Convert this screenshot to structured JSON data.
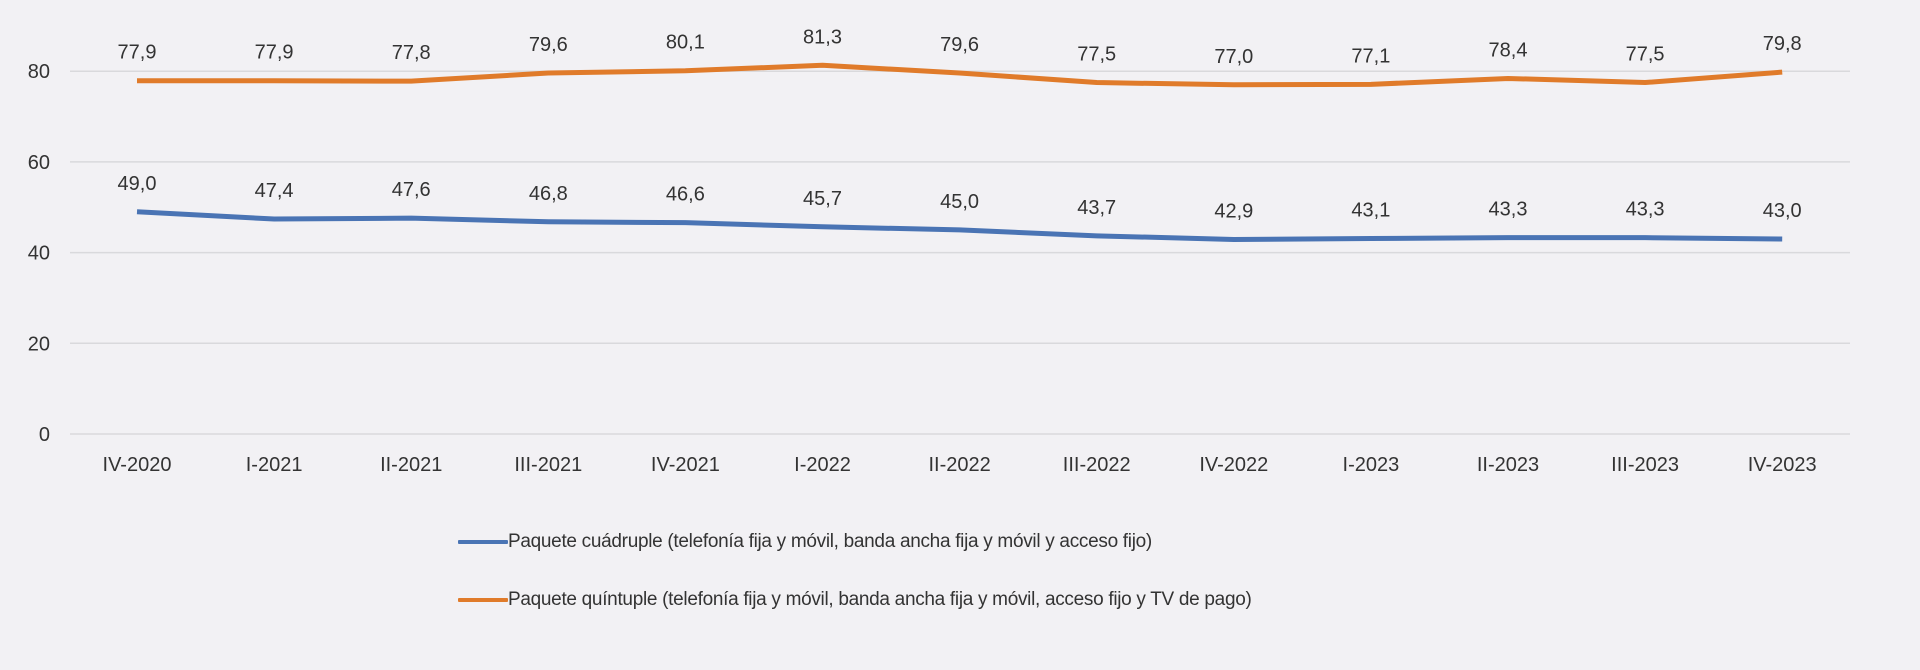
{
  "chart_data": {
    "type": "line",
    "title": "",
    "xlabel": "",
    "ylabel": "",
    "ylim": [
      0,
      80
    ],
    "yticks": [
      0,
      20,
      40,
      60,
      80
    ],
    "grid": true,
    "legend_position": "bottom",
    "categories": [
      "IV-2020",
      "I-2021",
      "II-2021",
      "III-2021",
      "IV-2021",
      "I-2022",
      "II-2022",
      "III-2022",
      "IV-2022",
      "I-2023",
      "II-2023",
      "III-2023",
      "IV-2023"
    ],
    "series": [
      {
        "name": "Paquete cuádruple (telefonía fija y móvil, banda ancha fija y móvil y acceso fijo)",
        "color": "#4a74b4",
        "values": [
          49.0,
          47.4,
          47.6,
          46.8,
          46.6,
          45.7,
          45.0,
          43.7,
          42.9,
          43.1,
          43.3,
          43.3,
          43.0
        ],
        "labels": [
          "49,0",
          "47,4",
          "47,6",
          "46,8",
          "46,6",
          "45,7",
          "45,0",
          "43,7",
          "42,9",
          "43,1",
          "43,3",
          "43,3",
          "43,0"
        ]
      },
      {
        "name": "Paquete quíntuple (telefonía fija y móvil, banda ancha fija y móvil, acceso fijo y TV de pago)",
        "color": "#e07b2a",
        "values": [
          77.9,
          77.9,
          77.8,
          79.6,
          80.1,
          81.3,
          79.6,
          77.5,
          77.0,
          77.1,
          78.4,
          77.5,
          79.8
        ],
        "labels": [
          "77,9",
          "77,9",
          "77,8",
          "79,6",
          "80,1",
          "81,3",
          "79,6",
          "77,5",
          "77,0",
          "77,1",
          "78,4",
          "77,5",
          "79,8"
        ]
      }
    ]
  },
  "legend": {
    "items": [
      {
        "label": "Paquete cuádruple (telefonía fija y móvil, banda ancha fija y móvil y acceso fijo)",
        "color": "#4a74b4"
      },
      {
        "label": "Paquete quíntuple (telefonía fija y móvil, banda ancha fija y móvil, acceso fijo y TV de pago)",
        "color": "#e07b2a"
      }
    ]
  },
  "colors": {
    "background": "#f2f1f4",
    "grid": "#d9d9dc",
    "text": "#333333"
  }
}
